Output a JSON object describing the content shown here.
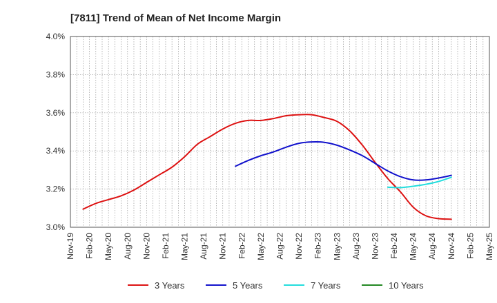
{
  "chart_data": {
    "type": "line",
    "title": "[7811]  Trend of Mean of Net Income Margin",
    "xlabel": "",
    "ylabel": "",
    "y_unit": "%",
    "ylim": [
      3.0,
      4.0
    ],
    "y_ticks": [
      "3.0%",
      "3.2%",
      "3.4%",
      "3.6%",
      "3.8%",
      "4.0%"
    ],
    "x_range": [
      "2019-11",
      "2025-05"
    ],
    "x_ticks": [
      "Nov-19",
      "Feb-20",
      "May-20",
      "Aug-20",
      "Nov-20",
      "Feb-21",
      "May-21",
      "Aug-21",
      "Nov-21",
      "Feb-22",
      "May-22",
      "Aug-22",
      "Nov-22",
      "Feb-23",
      "May-23",
      "Aug-23",
      "Nov-23",
      "Feb-24",
      "May-24",
      "Aug-24",
      "Nov-24",
      "Feb-25",
      "May-25"
    ],
    "grid": true,
    "legend_position": "bottom",
    "series": [
      {
        "name": "3 Years",
        "color": "#dd1111",
        "points": [
          [
            "2020-01",
            3.095
          ],
          [
            "2020-03",
            3.125
          ],
          [
            "2020-05",
            3.145
          ],
          [
            "2020-07",
            3.165
          ],
          [
            "2020-09",
            3.195
          ],
          [
            "2020-11",
            3.235
          ],
          [
            "2021-01",
            3.275
          ],
          [
            "2021-03",
            3.315
          ],
          [
            "2021-05",
            3.37
          ],
          [
            "2021-07",
            3.435
          ],
          [
            "2021-09",
            3.475
          ],
          [
            "2021-11",
            3.515
          ],
          [
            "2022-01",
            3.545
          ],
          [
            "2022-03",
            3.56
          ],
          [
            "2022-05",
            3.56
          ],
          [
            "2022-07",
            3.57
          ],
          [
            "2022-09",
            3.585
          ],
          [
            "2022-11",
            3.59
          ],
          [
            "2023-01",
            3.59
          ],
          [
            "2023-03",
            3.575
          ],
          [
            "2023-05",
            3.555
          ],
          [
            "2023-07",
            3.505
          ],
          [
            "2023-09",
            3.43
          ],
          [
            "2023-11",
            3.34
          ],
          [
            "2024-01",
            3.255
          ],
          [
            "2024-03",
            3.185
          ],
          [
            "2024-05",
            3.105
          ],
          [
            "2024-07",
            3.06
          ],
          [
            "2024-09",
            3.045
          ],
          [
            "2024-11",
            3.042
          ]
        ]
      },
      {
        "name": "5 Years",
        "color": "#1111cc",
        "points": [
          [
            "2022-01",
            3.32
          ],
          [
            "2022-03",
            3.35
          ],
          [
            "2022-05",
            3.375
          ],
          [
            "2022-07",
            3.395
          ],
          [
            "2022-09",
            3.42
          ],
          [
            "2022-11",
            3.44
          ],
          [
            "2023-01",
            3.447
          ],
          [
            "2023-03",
            3.445
          ],
          [
            "2023-05",
            3.43
          ],
          [
            "2023-07",
            3.405
          ],
          [
            "2023-09",
            3.375
          ],
          [
            "2023-11",
            3.335
          ],
          [
            "2024-01",
            3.295
          ],
          [
            "2024-03",
            3.265
          ],
          [
            "2024-05",
            3.248
          ],
          [
            "2024-07",
            3.248
          ],
          [
            "2024-09",
            3.258
          ],
          [
            "2024-11",
            3.272
          ]
        ]
      },
      {
        "name": "7 Years",
        "color": "#22dddd",
        "points": [
          [
            "2024-01",
            3.21
          ],
          [
            "2024-03",
            3.208
          ],
          [
            "2024-05",
            3.215
          ],
          [
            "2024-07",
            3.225
          ],
          [
            "2024-09",
            3.24
          ],
          [
            "2024-11",
            3.262
          ]
        ]
      },
      {
        "name": "10 Years",
        "color": "#228822",
        "points": []
      }
    ]
  }
}
